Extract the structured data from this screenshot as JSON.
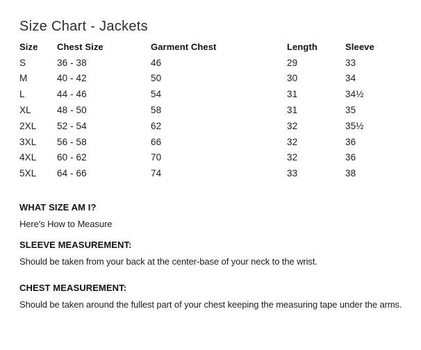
{
  "page": {
    "title": "Size Chart - Jackets",
    "colors": {
      "background": "#ffffff",
      "text": "#1d1d1d"
    }
  },
  "table": {
    "columns": [
      "Size",
      "Chest Size",
      "Garment Chest",
      "Length",
      "Sleeve"
    ],
    "rows": [
      [
        "S",
        "36 - 38",
        "46",
        "29",
        "33"
      ],
      [
        "M",
        "40 - 42",
        "50",
        "30",
        "34"
      ],
      [
        "L",
        "44 - 46",
        "54",
        "31",
        "34½"
      ],
      [
        "XL",
        "48 - 50",
        "58",
        "31",
        "35"
      ],
      [
        "2XL",
        "52 - 54",
        "62",
        "32",
        "35½"
      ],
      [
        "3XL",
        "56 - 58",
        "66",
        "32",
        "36"
      ],
      [
        "4XL",
        "60 - 62",
        "70",
        "32",
        "36"
      ],
      [
        "5XL",
        "64 - 66",
        "74",
        "33",
        "38"
      ]
    ]
  },
  "sections": [
    {
      "heading": "WHAT SIZE AM I?",
      "body": "Here's How to Measure"
    },
    {
      "heading": "SLEEVE MEASUREMENT:",
      "body": "Should be taken from your back at the center-base of your neck to the wrist."
    },
    {
      "heading": "CHEST MEASUREMENT:",
      "body": "Should be taken around the fullest part of your chest keeping the measuring tape under the arms."
    }
  ]
}
